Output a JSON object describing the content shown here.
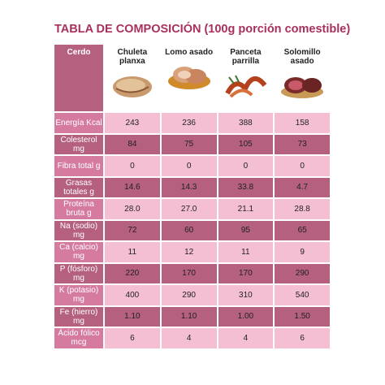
{
  "header": {
    "title": "TABLA DE COMPOSICIÓN (100g porción comestible)"
  },
  "table": {
    "corner": "Cerdo",
    "columns": [
      "Chuleta planxa",
      "Lomo asado",
      "Panceta parrilla",
      "Solomillo asado"
    ],
    "rows": [
      {
        "label": "Energía Kcal",
        "cells": [
          "243",
          "236",
          "388",
          "158"
        ]
      },
      {
        "label": "Colesterol mg",
        "cells": [
          "84",
          "75",
          "105",
          "73"
        ]
      },
      {
        "label": "Fibra total g",
        "cells": [
          "0",
          "0",
          "0",
          "0"
        ]
      },
      {
        "label": "Grasas totales g",
        "cells": [
          "14.6",
          "14.3",
          "33.8",
          "4.7"
        ]
      },
      {
        "label": "Proteína bruta g",
        "cells": [
          "28.0",
          "27.0",
          "21.1",
          "28.8"
        ]
      },
      {
        "label": "Na (sodio) mg",
        "cells": [
          "72",
          "60",
          "95",
          "65"
        ]
      },
      {
        "label": "Ca (calcio) mg",
        "cells": [
          "11",
          "12",
          "11",
          "9"
        ]
      },
      {
        "label": "P (fósforo) mg",
        "cells": [
          "220",
          "170",
          "170",
          "290"
        ]
      },
      {
        "label": "K (potasio) mg",
        "cells": [
          "400",
          "290",
          "310",
          "540"
        ]
      },
      {
        "label": "Fe (hierro) mg",
        "cells": [
          "1.10",
          "1.10",
          "1.00",
          "1.50"
        ]
      },
      {
        "label": "Ácido fólico mcg",
        "cells": [
          "6",
          "4",
          "4",
          "6"
        ]
      }
    ]
  }
}
